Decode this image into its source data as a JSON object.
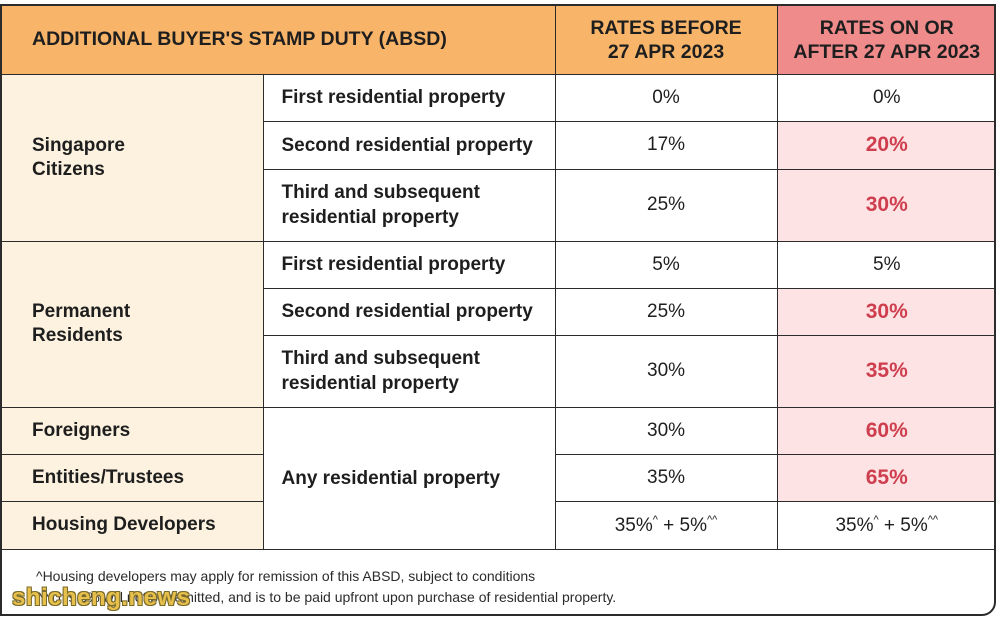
{
  "header": {
    "title": "ADDITIONAL BUYER'S STAMP DUTY (ABSD)",
    "before_line1": "RATES BEFORE",
    "before_line2": "27 APR 2023",
    "after_line1": "RATES ON OR",
    "after_line2": "AFTER 27 APR 2023"
  },
  "groups": {
    "citizens": {
      "label_line1": "Singapore",
      "label_line2": "Citizens",
      "rows": [
        {
          "property": "First residential property",
          "before": "0%",
          "after": "0%"
        },
        {
          "property": "Second residential property",
          "before": "17%",
          "after": "20%"
        },
        {
          "property_line1": "Third and subsequent",
          "property_line2": "residential property",
          "before": "25%",
          "after": "30%"
        }
      ]
    },
    "residents": {
      "label_line1": "Permanent",
      "label_line2": "Residents",
      "rows": [
        {
          "property": "First residential property",
          "before": "5%",
          "after": "5%"
        },
        {
          "property": "Second residential property",
          "before": "25%",
          "after": "30%"
        },
        {
          "property_line1": "Third and subsequent",
          "property_line2": "residential property",
          "before": "30%",
          "after": "35%"
        }
      ]
    },
    "others": {
      "property": "Any residential property",
      "rows": [
        {
          "label": "Foreigners",
          "before": "30%",
          "after": "60%"
        },
        {
          "label": "Entities/Trustees",
          "before": "35%",
          "after": "65%"
        },
        {
          "label": "Housing Developers",
          "before_a": "35%",
          "before_sup_a": "^",
          "before_b": " + 5%",
          "before_sup_b": "^^",
          "after_a": "35%",
          "after_sup_a": "^",
          "after_b": " + 5%",
          "after_sup_b": "^^"
        }
      ]
    }
  },
  "notes": {
    "line1": "^Housing developers may apply for remission of this ABSD, subject to conditions",
    "line2": "^^This 5% will not be remitted, and is to be paid upfront upon purchase of residential property."
  },
  "watermark": "shicheng.news",
  "colors": {
    "header_bg": "#f8b56a",
    "header_after_bg": "#ef8b8b",
    "group_bg": "#fcf2df",
    "highlight_bg": "#fde3e3",
    "highlight_text": "#cf3e4e"
  }
}
